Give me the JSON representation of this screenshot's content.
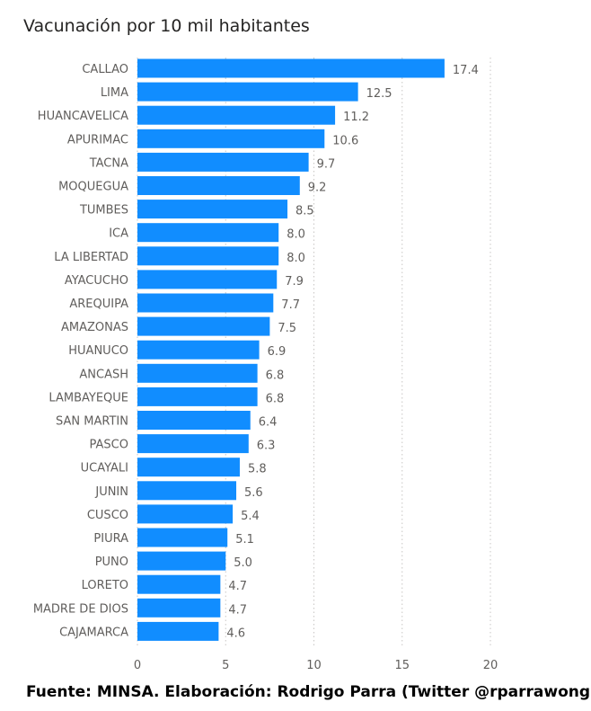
{
  "chart_data": {
    "type": "bar",
    "orientation": "horizontal",
    "title": "Vacunación por 10 mil habitantes",
    "categories": [
      "CALLAO",
      "LIMA",
      "HUANCAVELICA",
      "APURIMAC",
      "TACNA",
      "MOQUEGUA",
      "TUMBES",
      "ICA",
      "LA LIBERTAD",
      "AYACUCHO",
      "AREQUIPA",
      "AMAZONAS",
      "HUANUCO",
      "ANCASH",
      "LAMBAYEQUE",
      "SAN MARTIN",
      "PASCO",
      "UCAYALI",
      "JUNIN",
      "CUSCO",
      "PIURA",
      "PUNO",
      "LORETO",
      "MADRE DE DIOS",
      "CAJAMARCA"
    ],
    "values": [
      17.4,
      12.5,
      11.2,
      10.6,
      9.7,
      9.2,
      8.5,
      8.0,
      8.0,
      7.9,
      7.7,
      7.5,
      6.9,
      6.8,
      6.8,
      6.4,
      6.3,
      5.8,
      5.6,
      5.4,
      5.1,
      5.0,
      4.7,
      4.7,
      4.6
    ],
    "value_labels": [
      "17.4",
      "12.5",
      "11.2",
      "10.6",
      "9.7",
      "9.2",
      "8.5",
      "8.0",
      "8.0",
      "7.9",
      "7.7",
      "7.5",
      "6.9",
      "6.8",
      "6.8",
      "6.4",
      "6.3",
      "5.8",
      "5.6",
      "5.4",
      "5.1",
      "5.0",
      "4.7",
      "4.7",
      "4.6"
    ],
    "xlim": [
      0,
      20
    ],
    "xticks": [
      0,
      5,
      10,
      15,
      20
    ],
    "xtick_labels": [
      "0",
      "5",
      "10",
      "15",
      "20"
    ],
    "grid": "vertical dotted",
    "legend": "none",
    "bar_color": "#118DFF",
    "label_color": "#605E5C",
    "grid_color": "#C8C6C4"
  },
  "footer": {
    "text": "Fuente: MINSA. Elaboración: Rodrigo Parra (Twitter @rparrawong)"
  }
}
